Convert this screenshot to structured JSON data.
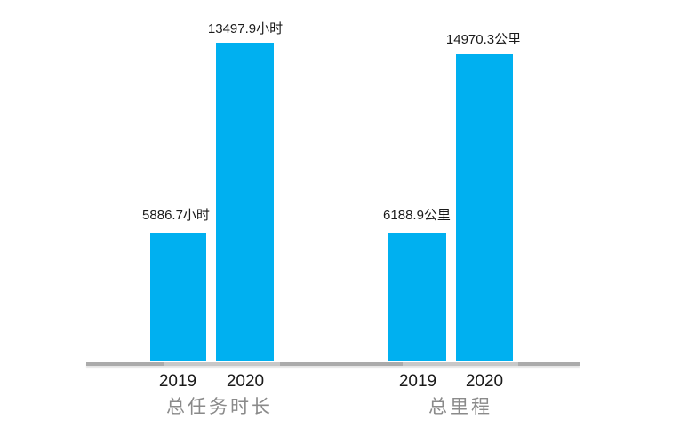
{
  "palette": {
    "bar_color": "#00B0F0",
    "axis_line_color": "#ABABAB",
    "group_title_color": "#8A8A8A",
    "label_text_color": "#1A1A1A",
    "background": "#FFFFFF"
  },
  "chart_data": [
    {
      "type": "bar",
      "title": "总任务时长",
      "categories": [
        "2019",
        "2020"
      ],
      "values": [
        5886.7,
        13497.9
      ],
      "unit": "小时",
      "data_labels": [
        "5886.7小时",
        "13497.9小时"
      ],
      "bar_color": "#00B0F0",
      "xlabel": "",
      "ylabel": "",
      "ylim": [
        0,
        14000
      ],
      "grid": false,
      "legend": "none",
      "axis_visible": "x-only"
    },
    {
      "type": "bar",
      "title": "总里程",
      "categories": [
        "2019",
        "2020"
      ],
      "values": [
        6188.9,
        14970.3
      ],
      "unit": "公里",
      "data_labels": [
        "6188.9公里",
        "14970.3公里"
      ],
      "bar_color": "#00B0F0",
      "xlabel": "",
      "ylabel": "",
      "ylim": [
        0,
        15500
      ],
      "grid": false,
      "legend": "none",
      "axis_visible": "x-only"
    }
  ]
}
